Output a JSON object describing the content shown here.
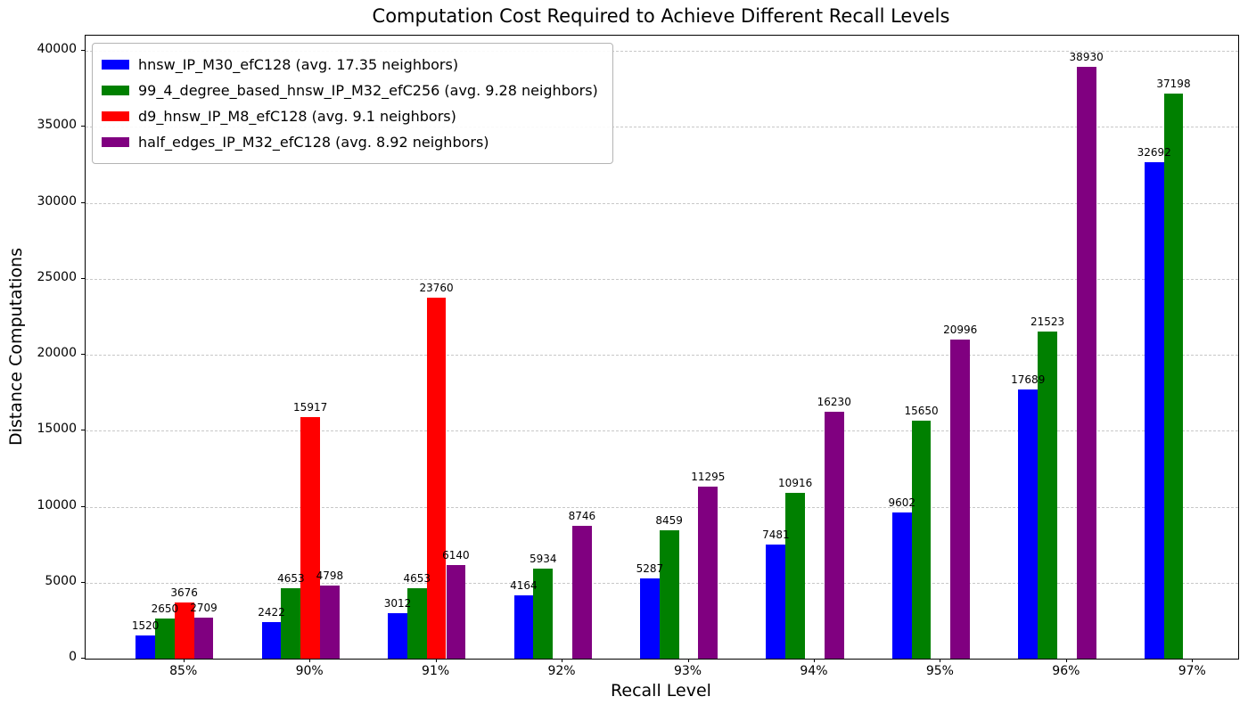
{
  "chart_data": {
    "type": "bar",
    "title": "Computation Cost Required to Achieve Different Recall Levels",
    "xlabel": "Recall Level",
    "ylabel": "Distance Computations",
    "categories": [
      "85%",
      "90%",
      "91%",
      "92%",
      "93%",
      "94%",
      "95%",
      "96%",
      "97%"
    ],
    "series": [
      {
        "name": "hnsw_IP_M30_efC128 (avg. 17.35 neighbors)",
        "color": "#0000ff",
        "values": [
          1520,
          2422,
          3012,
          4164,
          5287,
          7481,
          9602,
          17689,
          32692
        ]
      },
      {
        "name": "99_4_degree_based_hnsw_IP_M32_efC256 (avg. 9.28 neighbors)",
        "color": "#008000",
        "values": [
          2650,
          4653,
          4653,
          5934,
          8459,
          10916,
          15650,
          21523,
          37198
        ]
      },
      {
        "name": "d9_hnsw_IP_M8_efC128 (avg. 9.1 neighbors)",
        "color": "#ff0000",
        "values": [
          3676,
          15917,
          23760,
          null,
          null,
          null,
          null,
          null,
          null
        ]
      },
      {
        "name": "half_edges_IP_M32_efC128 (avg. 8.92 neighbors)",
        "color": "#800080",
        "values": [
          2709,
          4798,
          6140,
          8746,
          11295,
          16230,
          20996,
          38930,
          null
        ]
      }
    ],
    "yticks": [
      0,
      5000,
      10000,
      15000,
      20000,
      25000,
      30000,
      35000,
      40000
    ],
    "ylim": [
      0,
      41000
    ],
    "bar_value_labels": true,
    "grid": "horizontal-dashed",
    "grid_color": "#c8c8c8",
    "legend_position": "upper-left",
    "background_color": "#ffffff",
    "spine_color": "#000000"
  }
}
